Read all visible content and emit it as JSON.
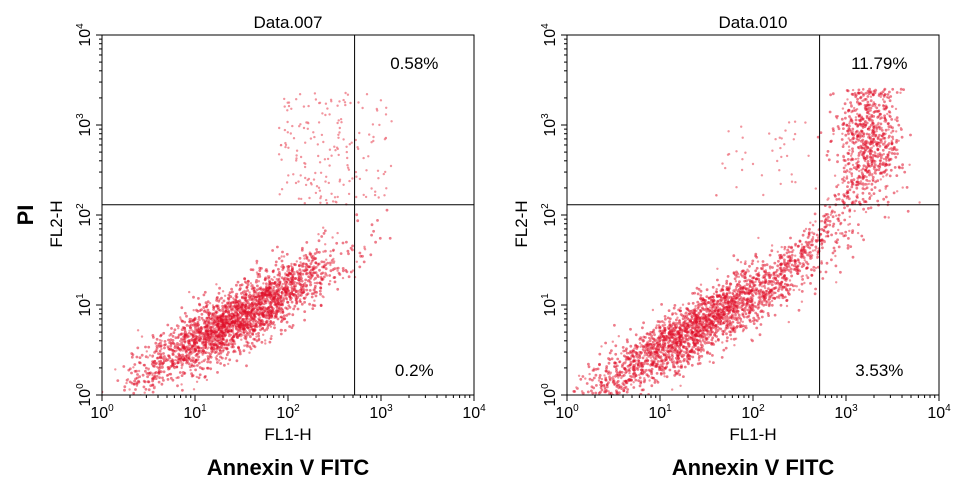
{
  "figure": {
    "y_outer_label": "PI",
    "colors": {
      "dots": "#e0102a",
      "dots_light": "#ef7a86",
      "axes": "#000000"
    }
  },
  "chart_data": [
    {
      "type": "scatter",
      "title": "Data.007",
      "xlabel": "FL1-H",
      "ylabel": "FL2-H",
      "outer_xlabel": "Annexin V FITC",
      "x_scale": "log",
      "y_scale": "log",
      "xlim": [
        1,
        10000
      ],
      "ylim": [
        1,
        10000
      ],
      "x_ticks": [
        {
          "base": "10",
          "exp": "0"
        },
        {
          "base": "10",
          "exp": "1"
        },
        {
          "base": "10",
          "exp": "2"
        },
        {
          "base": "10",
          "exp": "3"
        },
        {
          "base": "10",
          "exp": "4"
        }
      ],
      "y_ticks": [
        {
          "base": "10",
          "exp": "0"
        },
        {
          "base": "10",
          "exp": "1"
        },
        {
          "base": "10",
          "exp": "2"
        },
        {
          "base": "10",
          "exp": "3"
        },
        {
          "base": "10",
          "exp": "4"
        }
      ],
      "gate_x": 520,
      "gate_y": 130,
      "quadrants": {
        "upper_right": "0.58%",
        "lower_right": "0.2%"
      },
      "population": {
        "main": {
          "center": [
            28,
            7
          ],
          "spread_major": 0.52,
          "spread_minor": 0.17,
          "slope": 0.58,
          "count": 2600
        },
        "sparse_upper": {
          "x_range": [
            80,
            1300
          ],
          "y_range": [
            130,
            2300
          ],
          "count": 140
        },
        "sparse_upper_left": {
          "x_range": [
            90,
            520
          ],
          "y_range": [
            140,
            2000
          ],
          "count": 45
        }
      }
    },
    {
      "type": "scatter",
      "title": "Data.010",
      "xlabel": "FL1-H",
      "ylabel": "FL2-H",
      "outer_xlabel": "Annexin V FITC",
      "x_scale": "log",
      "y_scale": "log",
      "xlim": [
        1,
        10000
      ],
      "ylim": [
        1,
        10000
      ],
      "x_ticks": [
        {
          "base": "10",
          "exp": "0"
        },
        {
          "base": "10",
          "exp": "1"
        },
        {
          "base": "10",
          "exp": "2"
        },
        {
          "base": "10",
          "exp": "3"
        },
        {
          "base": "10",
          "exp": "4"
        }
      ],
      "y_ticks": [
        {
          "base": "10",
          "exp": "0"
        },
        {
          "base": "10",
          "exp": "1"
        },
        {
          "base": "10",
          "exp": "2"
        },
        {
          "base": "10",
          "exp": "3"
        },
        {
          "base": "10",
          "exp": "4"
        }
      ],
      "gate_x": 520,
      "gate_y": 130,
      "quadrants": {
        "upper_right": "11.79%",
        "lower_right": "3.53%"
      },
      "population": {
        "main": {
          "center": [
            28,
            6
          ],
          "spread_major": 0.62,
          "spread_minor": 0.17,
          "slope": 0.62,
          "count": 2400
        },
        "bridge": {
          "x_range": [
            300,
            1500
          ],
          "y_range": [
            30,
            250
          ],
          "count": 200
        },
        "upper_right_cluster": {
          "center": [
            1800,
            700
          ],
          "spread_x": 0.17,
          "spread_y": 0.32,
          "count": 700
        },
        "sparse_upper_left": {
          "x_range": [
            40,
            520
          ],
          "y_range": [
            150,
            1200
          ],
          "count": 40
        }
      }
    }
  ]
}
